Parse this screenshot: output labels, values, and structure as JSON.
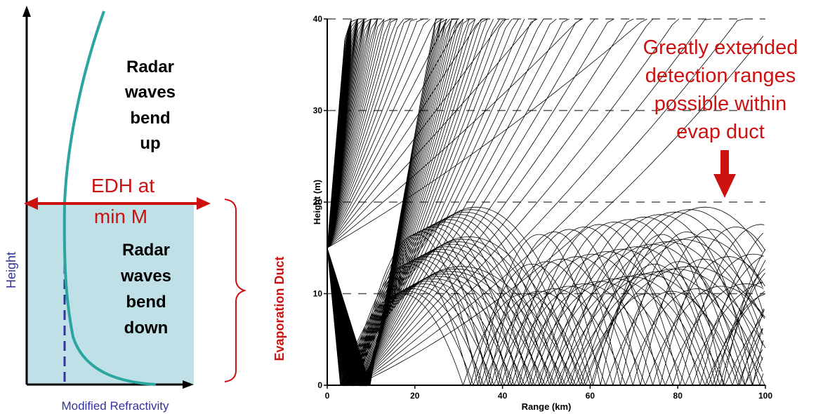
{
  "colors": {
    "duct_fill": "#bfe0e6",
    "curve": "#2aa6a0",
    "accent_red": "#cc1111",
    "axis_blue": "#333399",
    "black": "#000000"
  },
  "left_diagram": {
    "above_text": [
      "Radar",
      "waves",
      "bend",
      "up"
    ],
    "below_text": [
      "Radar",
      "waves",
      "bend",
      "down"
    ],
    "edh_text": [
      "EDH at",
      "min M"
    ],
    "y_axis_label": "Height",
    "x_axis_label": "Modified Refractivity",
    "brace_label": "Evaporation Duct"
  },
  "chart_data": {
    "type": "line",
    "title": "",
    "xlabel": "Range (km)",
    "ylabel": "Height (m)",
    "xlim": [
      0,
      100
    ],
    "ylim": [
      0,
      40
    ],
    "x_ticks": [
      "0",
      "20",
      "40",
      "60",
      "80",
      "100"
    ],
    "y_ticks": [
      "0",
      "10",
      "20",
      "30",
      "40"
    ],
    "grid": "dashed horizontal at 10, 20, 30, 40 m",
    "source_height": 15,
    "duct_height": 20,
    "series_description": "ray traces from a 15 m source"
  },
  "annotation": {
    "lines": [
      "Greatly extended",
      "detection ranges",
      "possible within",
      "evap duct"
    ]
  }
}
